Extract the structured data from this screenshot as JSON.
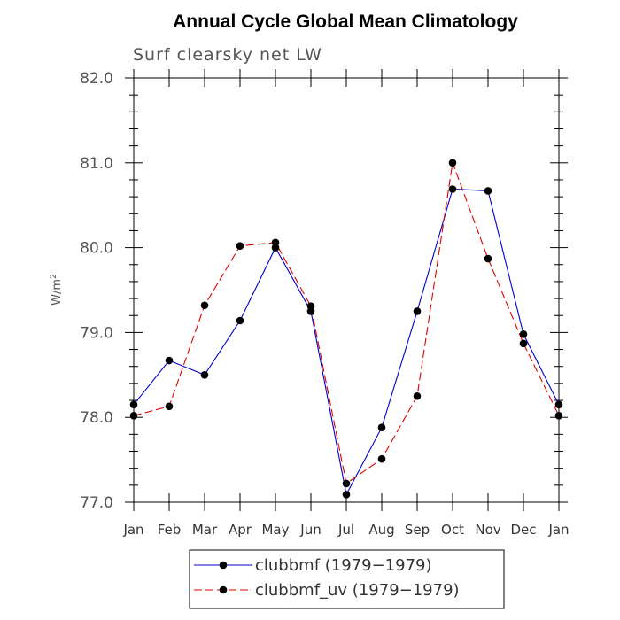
{
  "chart_data": {
    "type": "line",
    "title": "Annual Cycle Global Mean Climatology",
    "subtitle": "Surf clearsky net LW",
    "ylabel_main": "W/m",
    "ylabel_sup": "2",
    "xlabel": "",
    "categories": [
      "Jan",
      "Feb",
      "Mar",
      "Apr",
      "May",
      "Jun",
      "Jul",
      "Aug",
      "Sep",
      "Oct",
      "Nov",
      "Dec",
      "Jan"
    ],
    "ylim": [
      77.0,
      82.0
    ],
    "yticks": [
      "77.0",
      "78.0",
      "79.0",
      "80.0",
      "81.0",
      "82.0"
    ],
    "series": [
      {
        "name": "clubbmf (1979−1979)",
        "color": "#0000cc",
        "dash": "solid",
        "values": [
          78.15,
          78.67,
          78.5,
          79.14,
          80.0,
          79.25,
          77.09,
          77.88,
          79.25,
          80.69,
          80.67,
          78.98,
          78.15
        ]
      },
      {
        "name": "clubbmf_uv (1979−1979)",
        "color": "#dd0000",
        "dash": "dashed",
        "values": [
          78.02,
          78.13,
          79.32,
          80.02,
          80.06,
          79.31,
          77.22,
          77.51,
          78.25,
          81.0,
          79.87,
          78.87,
          78.02
        ]
      }
    ],
    "legend_position": "bottom"
  }
}
